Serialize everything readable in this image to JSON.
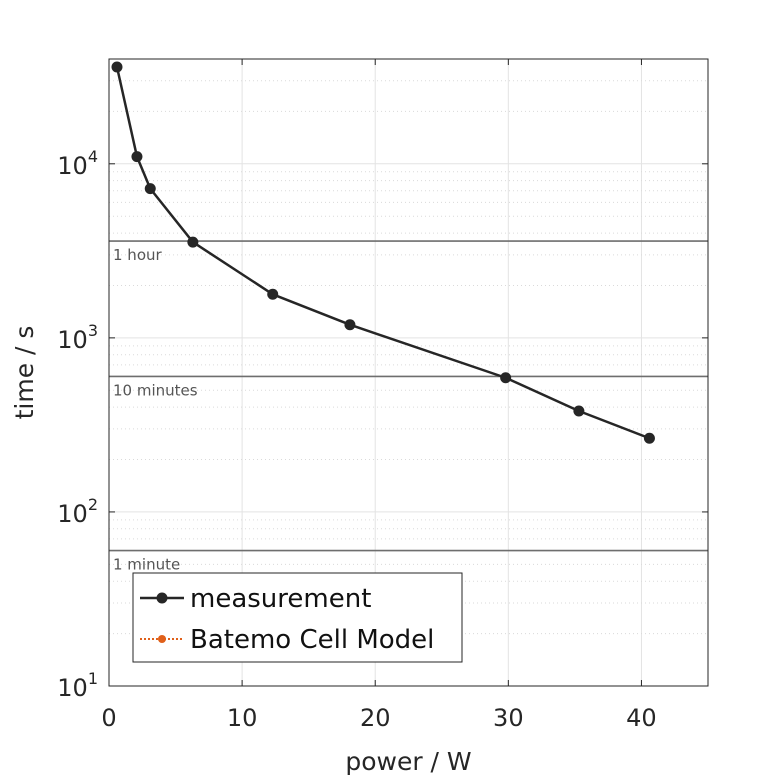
{
  "chart_data": {
    "type": "line",
    "title": "",
    "xlabel": "power / W",
    "ylabel": "time / s",
    "xlim": [
      0,
      45
    ],
    "ylim": [
      10,
      40000
    ],
    "yscale": "log",
    "grid": true,
    "xticks": [
      0,
      10,
      20,
      30,
      40
    ],
    "xtick_labels": [
      "0",
      "10",
      "20",
      "30",
      "40"
    ],
    "yticks": [
      10,
      100,
      1000,
      10000
    ],
    "ytick_labels": [
      {
        "base": "10",
        "exp": "1"
      },
      {
        "base": "10",
        "exp": "2"
      },
      {
        "base": "10",
        "exp": "3"
      },
      {
        "base": "10",
        "exp": "4"
      }
    ],
    "series": [
      {
        "name": "measurement",
        "color": "#262626",
        "style": "solid-with-circle-markers",
        "x": [
          0.6,
          2.1,
          3.1,
          6.3,
          12.3,
          18.1,
          29.8,
          35.3,
          40.6
        ],
        "y": [
          36000,
          11000,
          7200,
          3550,
          1780,
          1190,
          590,
          380,
          265
        ]
      },
      {
        "name": "Batemo Cell Model",
        "color": "#e0601a",
        "style": "dotted-with-dot-markers",
        "x": [],
        "y": []
      }
    ],
    "reference_lines": [
      {
        "y": 3600,
        "label": "1 hour",
        "color": "#6e6e6e"
      },
      {
        "y": 600,
        "label": "10 minutes",
        "color": "#6e6e6e"
      },
      {
        "y": 60,
        "label": "1 minute",
        "color": "#6e6e6e"
      }
    ],
    "legend": {
      "placement": "bottom-left"
    }
  }
}
